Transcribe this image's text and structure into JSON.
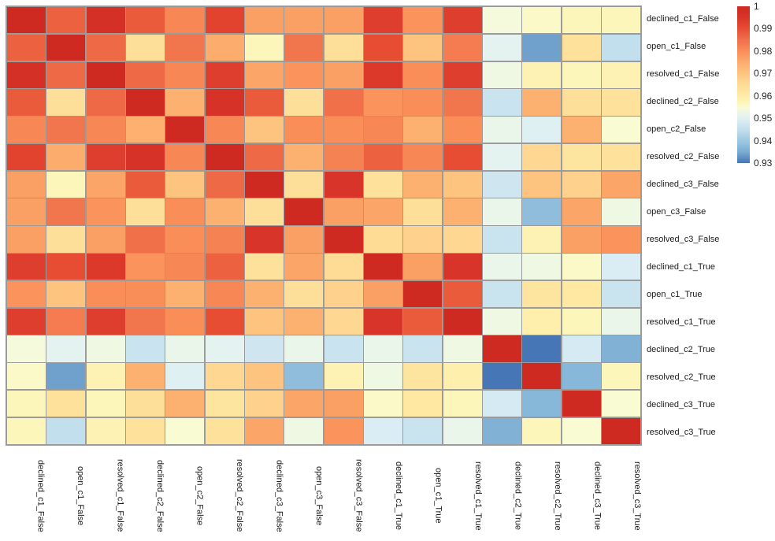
{
  "chart_data": {
    "type": "heatmap",
    "title": "",
    "grid": true,
    "legend_position": "right",
    "labels": [
      "declined_c1_False",
      "open_c1_False",
      "resolved_c1_False",
      "declined_c2_False",
      "open_c2_False",
      "resolved_c2_False",
      "declined_c3_False",
      "open_c3_False",
      "resolved_c3_False",
      "declined_c1_True",
      "open_c1_True",
      "resolved_c1_True",
      "declined_c2_True",
      "resolved_c2_True",
      "declined_c3_True",
      "resolved_c3_True"
    ],
    "matrix": [
      [
        1.0,
        0.987,
        0.997,
        0.988,
        0.981,
        0.992,
        0.977,
        0.977,
        0.977,
        0.993,
        0.979,
        0.993,
        0.954,
        0.956,
        0.957,
        0.957
      ],
      [
        0.987,
        1.0,
        0.986,
        0.964,
        0.984,
        0.975,
        0.957,
        0.984,
        0.964,
        0.99,
        0.97,
        0.983,
        0.951,
        0.934,
        0.963,
        0.945
      ],
      [
        0.997,
        0.986,
        1.0,
        0.986,
        0.981,
        0.993,
        0.976,
        0.979,
        0.977,
        0.994,
        0.98,
        0.993,
        0.953,
        0.958,
        0.957,
        0.958
      ],
      [
        0.988,
        0.964,
        0.986,
        1.0,
        0.974,
        0.996,
        0.988,
        0.964,
        0.985,
        0.979,
        0.98,
        0.984,
        0.946,
        0.974,
        0.964,
        0.963
      ],
      [
        0.981,
        0.984,
        0.981,
        0.974,
        1.0,
        0.981,
        0.97,
        0.98,
        0.98,
        0.981,
        0.974,
        0.98,
        0.952,
        0.95,
        0.974,
        0.955
      ],
      [
        0.992,
        0.975,
        0.993,
        0.996,
        0.981,
        1.0,
        0.986,
        0.974,
        0.982,
        0.987,
        0.981,
        0.99,
        0.951,
        0.966,
        0.962,
        0.963
      ],
      [
        0.977,
        0.957,
        0.976,
        0.988,
        0.97,
        0.986,
        1.0,
        0.964,
        0.995,
        0.963,
        0.974,
        0.97,
        0.947,
        0.97,
        0.967,
        0.976
      ],
      [
        0.977,
        0.984,
        0.979,
        0.964,
        0.98,
        0.974,
        0.964,
        1.0,
        0.977,
        0.976,
        0.964,
        0.974,
        0.952,
        0.938,
        0.976,
        0.953
      ],
      [
        0.977,
        0.964,
        0.977,
        0.985,
        0.98,
        0.982,
        0.995,
        0.977,
        1.0,
        0.965,
        0.967,
        0.966,
        0.946,
        0.958,
        0.977,
        0.979
      ],
      [
        0.993,
        0.99,
        0.994,
        0.979,
        0.981,
        0.987,
        0.963,
        0.976,
        0.965,
        1.0,
        0.977,
        0.995,
        0.952,
        0.953,
        0.956,
        0.949
      ],
      [
        0.979,
        0.97,
        0.98,
        0.98,
        0.974,
        0.981,
        0.974,
        0.964,
        0.967,
        0.977,
        1.0,
        0.988,
        0.946,
        0.962,
        0.961,
        0.946
      ],
      [
        0.993,
        0.983,
        0.993,
        0.984,
        0.98,
        0.99,
        0.97,
        0.974,
        0.966,
        0.995,
        0.988,
        1.0,
        0.953,
        0.959,
        0.957,
        0.952
      ],
      [
        0.954,
        0.951,
        0.953,
        0.946,
        0.952,
        0.951,
        0.947,
        0.952,
        0.946,
        0.952,
        0.946,
        0.953,
        1.0,
        0.93,
        0.948,
        0.936
      ],
      [
        0.956,
        0.934,
        0.958,
        0.974,
        0.95,
        0.966,
        0.97,
        0.938,
        0.958,
        0.953,
        0.962,
        0.959,
        0.93,
        1.0,
        0.937,
        0.957
      ],
      [
        0.957,
        0.963,
        0.957,
        0.964,
        0.974,
        0.962,
        0.967,
        0.976,
        0.977,
        0.956,
        0.961,
        0.957,
        0.948,
        0.937,
        1.0,
        0.955
      ],
      [
        0.957,
        0.945,
        0.958,
        0.963,
        0.955,
        0.963,
        0.976,
        0.953,
        0.979,
        0.949,
        0.946,
        0.952,
        0.936,
        0.957,
        0.955,
        1.0
      ]
    ],
    "colorbar": {
      "min": 0.93,
      "max": 1.0,
      "tick_labels": [
        "1",
        "0.99",
        "0.98",
        "0.97",
        "0.96",
        "0.95",
        "0.94",
        "0.93"
      ]
    },
    "color_scale": [
      {
        "v": 1.0,
        "c": "#cf2a22"
      },
      {
        "v": 0.995,
        "c": "#d93429"
      },
      {
        "v": 0.99,
        "c": "#e64d33"
      },
      {
        "v": 0.985,
        "c": "#f0704a"
      },
      {
        "v": 0.98,
        "c": "#f98e58"
      },
      {
        "v": 0.975,
        "c": "#fcac6c"
      },
      {
        "v": 0.97,
        "c": "#fdc480"
      },
      {
        "v": 0.965,
        "c": "#fedc96"
      },
      {
        "v": 0.96,
        "c": "#feeba5"
      },
      {
        "v": 0.957,
        "c": "#fdf6bb"
      },
      {
        "v": 0.955,
        "c": "#f9fbd3"
      },
      {
        "v": 0.953,
        "c": "#eff8e2"
      },
      {
        "v": 0.951,
        "c": "#e4f3ef"
      },
      {
        "v": 0.949,
        "c": "#daedf4"
      },
      {
        "v": 0.947,
        "c": "#cfe6f1"
      },
      {
        "v": 0.945,
        "c": "#c2dfed"
      },
      {
        "v": 0.94,
        "c": "#9dc9e1"
      },
      {
        "v": 0.935,
        "c": "#7aacd3"
      },
      {
        "v": 0.93,
        "c": "#4676b6"
      }
    ],
    "border_color": "#9b9b9b",
    "label_color": "#1a1a1a"
  }
}
